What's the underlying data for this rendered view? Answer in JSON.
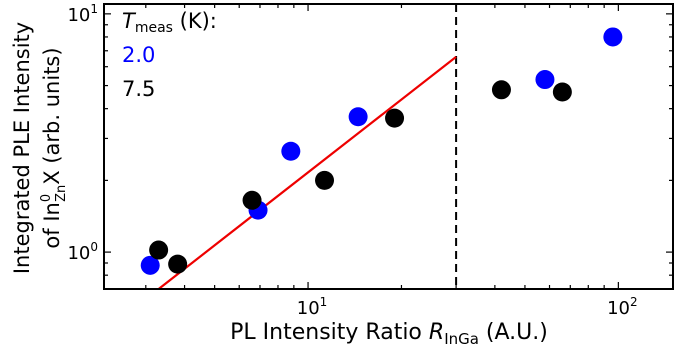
{
  "chart_data": {
    "type": "scatter",
    "xlabel": {
      "main": "PL Intensity Ratio ",
      "var": "R",
      "sub": "InGa",
      "unit": " (A.U.)"
    },
    "ylabel": {
      "line1": "Integrated PLE Intensity",
      "line2_pre": "of In",
      "line2_sup": "0",
      "line2_sub": "Zn",
      "line2_post": "X (arb. units)"
    },
    "x_scale": "log",
    "y_scale": "log",
    "xlim": [
      2.2,
      150
    ],
    "ylim": [
      0.7,
      11
    ],
    "x_ticks": [
      {
        "value": 10,
        "base": "10",
        "exp": "1"
      },
      {
        "value": 100,
        "base": "10",
        "exp": "2"
      }
    ],
    "y_ticks": [
      {
        "value": 1,
        "base": "10",
        "exp": "0"
      },
      {
        "value": 10,
        "base": "10",
        "exp": "1"
      }
    ],
    "legend": {
      "title_var": "T",
      "title_sub": "meas",
      "title_unit": " (K):",
      "entries": [
        {
          "label": "2.0",
          "color": "#0000ff"
        },
        {
          "label": "7.5",
          "color": "#000000"
        }
      ],
      "placement": "top-left"
    },
    "series": [
      {
        "label": "2.0",
        "color": "#0000ff",
        "points": [
          {
            "x": 3.1,
            "y": 0.88
          },
          {
            "x": 6.9,
            "y": 1.5
          },
          {
            "x": 8.8,
            "y": 2.65
          },
          {
            "x": 14.5,
            "y": 3.7
          },
          {
            "x": 58,
            "y": 5.3
          },
          {
            "x": 96,
            "y": 8.0
          }
        ]
      },
      {
        "label": "7.5",
        "color": "#000000",
        "points": [
          {
            "x": 3.3,
            "y": 1.02
          },
          {
            "x": 3.8,
            "y": 0.89
          },
          {
            "x": 6.6,
            "y": 1.65
          },
          {
            "x": 11.3,
            "y": 2.0
          },
          {
            "x": 19,
            "y": 3.65
          },
          {
            "x": 42,
            "y": 4.8
          },
          {
            "x": 66,
            "y": 4.7
          }
        ]
      }
    ],
    "fit_line": {
      "color": "#ee0000",
      "x": [
        3.3,
        30
      ],
      "y": [
        0.7,
        6.6
      ]
    },
    "vline": {
      "x": 30,
      "style": "dashed",
      "color": "#000000"
    }
  }
}
